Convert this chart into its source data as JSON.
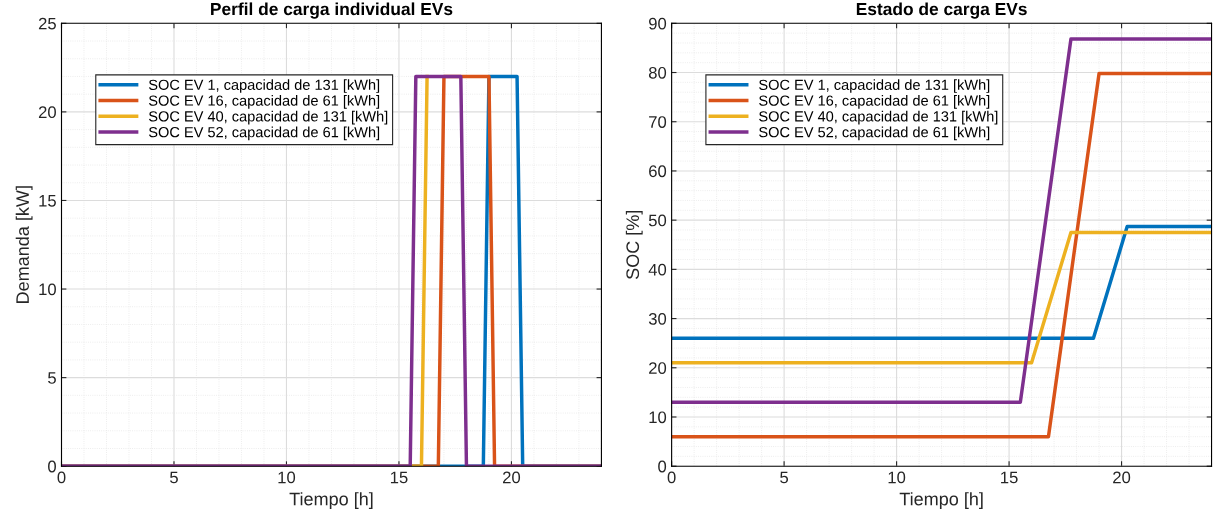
{
  "chart_data": [
    {
      "type": "line",
      "title": "Perfil de carga individual EVs",
      "xlabel": "Tiempo [h]",
      "ylabel": "Demanda [kW]",
      "xlim": [
        0,
        24
      ],
      "ylim": [
        0,
        25
      ],
      "xticks": [
        0,
        5,
        10,
        15,
        20
      ],
      "yticks": [
        0,
        5,
        10,
        15,
        20,
        25
      ],
      "grid": true,
      "legend": "top left",
      "line_style": "solid",
      "marker": "none",
      "series": [
        {
          "name": "SOC EV 1, capacidad de 131 [kWh]",
          "color": "#0072bd",
          "x": [
            0,
            18.75,
            19,
            20.25,
            20.5,
            24
          ],
          "values": [
            0,
            0,
            22,
            22,
            0,
            0
          ]
        },
        {
          "name": "SOC EV 16, capacidad de 61 [kWh]",
          "color": "#d95319",
          "x": [
            0,
            16.75,
            17,
            19,
            19.25,
            24
          ],
          "values": [
            0,
            0,
            22,
            22,
            0,
            0
          ]
        },
        {
          "name": "SOC EV 40, capacidad de 131 [kWh]",
          "color": "#edb120",
          "x": [
            15.6,
            16,
            16.25
          ],
          "values": [
            0,
            0,
            22
          ]
        },
        {
          "name": "SOC EV 52, capacidad de 61 [kWh]",
          "color": "#7e2f8e",
          "x": [
            0,
            15.5,
            15.75,
            17.75,
            18,
            24
          ],
          "values": [
            0,
            0,
            22,
            22,
            0,
            0
          ]
        }
      ]
    },
    {
      "type": "line",
      "title": "Estado de carga EVs",
      "xlabel": "Tiempo [h]",
      "ylabel": "SOC [%]",
      "xlim": [
        0,
        24
      ],
      "ylim": [
        0,
        90
      ],
      "xticks": [
        0,
        5,
        10,
        15,
        20
      ],
      "yticks": [
        0,
        10,
        20,
        30,
        40,
        50,
        60,
        70,
        80,
        90
      ],
      "grid": true,
      "legend": "top left",
      "line_style": "solid",
      "marker": "none",
      "series": [
        {
          "name": "SOC EV 1, capacidad de 131 [kWh]",
          "color": "#0072bd",
          "x": [
            0,
            18.75,
            20.25,
            24
          ],
          "values": [
            26,
            26,
            48.7,
            48.7
          ]
        },
        {
          "name": "SOC EV 16, capacidad de 61 [kWh]",
          "color": "#d95319",
          "x": [
            0,
            16.75,
            19,
            24
          ],
          "values": [
            6,
            6,
            79.8,
            79.8
          ]
        },
        {
          "name": "SOC EV 40, capacidad de 131 [kWh]",
          "color": "#edb120",
          "x": [
            0,
            16,
            17.75,
            24
          ],
          "values": [
            21,
            21,
            47.5,
            47.5
          ]
        },
        {
          "name": "SOC EV 52, capacidad de 61 [kWh]",
          "color": "#7e2f8e",
          "x": [
            0,
            15.5,
            17.75,
            24
          ],
          "values": [
            13,
            13,
            86.8,
            86.8
          ]
        }
      ]
    }
  ]
}
